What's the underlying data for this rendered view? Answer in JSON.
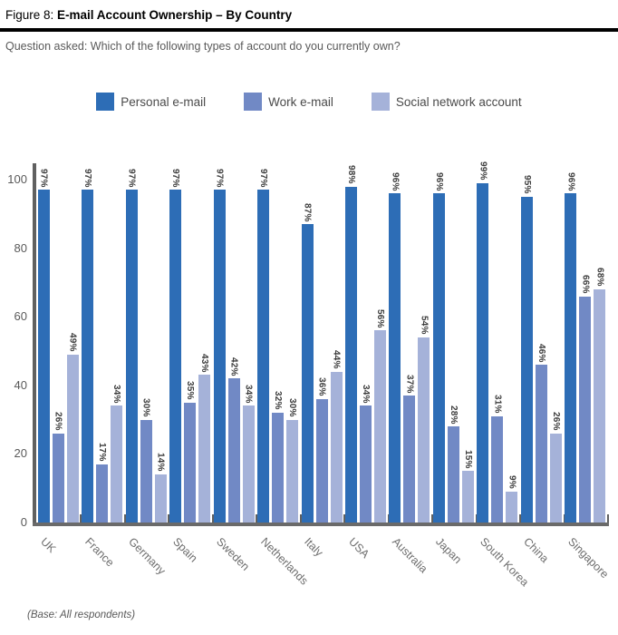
{
  "figure": {
    "label": "Figure 8:",
    "title": "E-mail Account Ownership – By Country"
  },
  "question": "Question asked: Which of the following types of account do you currently own?",
  "base_note": "(Base: All respondents)",
  "colors": {
    "personal": "#2d6db6",
    "work": "#7189c5",
    "social": "#a5b2d9",
    "axis": "#606060",
    "value_label": "#3d3d3d"
  },
  "chart_data": {
    "type": "bar",
    "title": "E-mail Account Ownership – By Country",
    "categories": [
      "UK",
      "France",
      "Germany",
      "Spain",
      "Sweden",
      "Netherlands",
      "Italy",
      "USA",
      "Australia",
      "Japan",
      "South Korea",
      "China",
      "Singapore"
    ],
    "series": [
      {
        "name": "Personal e-mail",
        "color": "#2d6db6",
        "values": [
          97,
          97,
          97,
          97,
          97,
          97,
          87,
          98,
          96,
          96,
          99,
          95,
          96
        ]
      },
      {
        "name": "Work e-mail",
        "color": "#7189c5",
        "values": [
          26,
          17,
          30,
          35,
          42,
          32,
          36,
          34,
          37,
          28,
          31,
          46,
          66
        ]
      },
      {
        "name": "Social network account",
        "color": "#a5b2d9",
        "values": [
          49,
          34,
          14,
          43,
          34,
          30,
          44,
          56,
          54,
          15,
          9,
          26,
          68
        ]
      }
    ],
    "value_label_suffix": "%",
    "xlabel": "",
    "ylabel": "",
    "ylim": [
      0,
      100
    ],
    "yticks": [
      0,
      20,
      40,
      60,
      80,
      100
    ],
    "grid": false,
    "legend_position": "top"
  }
}
